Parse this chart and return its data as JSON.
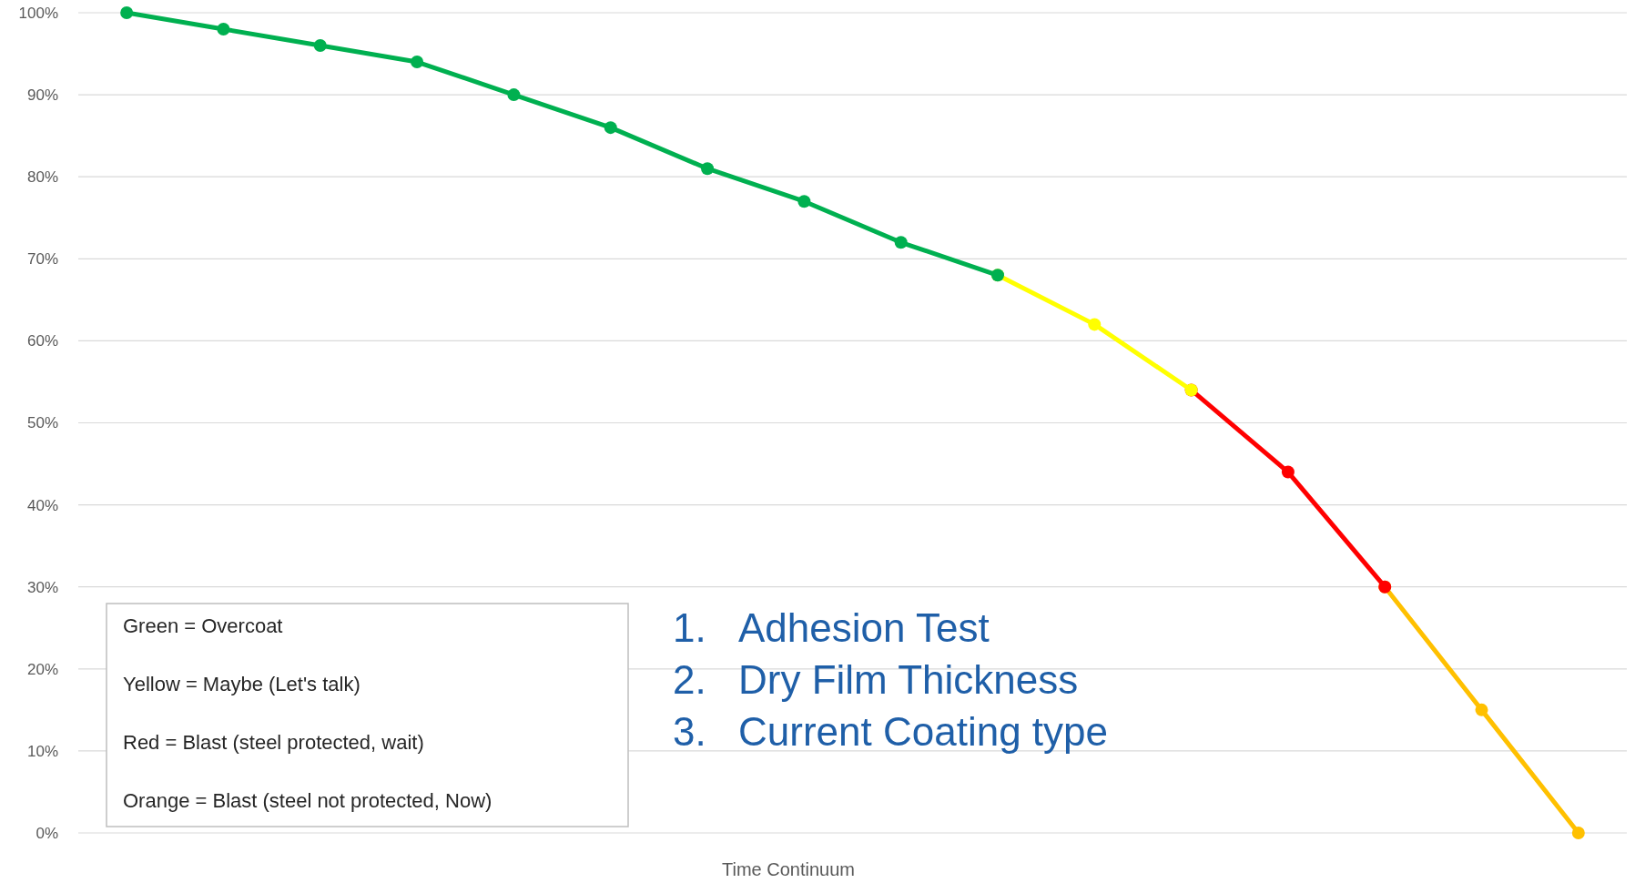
{
  "chart_data": {
    "type": "line",
    "xlabel": "Time Continuum",
    "categories": [
      null,
      null,
      null,
      null,
      null,
      null,
      null,
      null,
      null,
      null,
      null,
      null,
      null,
      null,
      null,
      null
    ],
    "series": [
      {
        "color": "#00b050",
        "values": [
          100,
          98,
          96,
          94,
          90,
          86,
          81,
          77,
          72,
          68,
          null,
          null,
          null,
          null,
          null,
          null
        ]
      },
      {
        "color": "#ffff00",
        "values": [
          null,
          null,
          null,
          null,
          null,
          null,
          null,
          null,
          null,
          68,
          62,
          54,
          null,
          null,
          null,
          null
        ]
      },
      {
        "color": "#ff0000",
        "values": [
          null,
          null,
          null,
          null,
          null,
          null,
          null,
          null,
          null,
          null,
          null,
          54,
          44,
          30,
          null,
          null
        ]
      },
      {
        "color": "#ffc000",
        "values": [
          null,
          null,
          null,
          null,
          null,
          null,
          null,
          null,
          null,
          null,
          null,
          null,
          null,
          30,
          15,
          0
        ]
      }
    ],
    "ylim": [
      0,
      100
    ],
    "yticks": [
      {
        "value": 0,
        "label": "0%"
      },
      {
        "value": 10,
        "label": "10%"
      },
      {
        "value": 20,
        "label": "20%"
      },
      {
        "value": 30,
        "label": "30%"
      },
      {
        "value": 40,
        "label": "40%"
      },
      {
        "value": 50,
        "label": "50%"
      },
      {
        "value": 60,
        "label": "60%"
      },
      {
        "value": 70,
        "label": "70%"
      },
      {
        "value": 80,
        "label": "80%"
      },
      {
        "value": 90,
        "label": "90%"
      },
      {
        "value": 100,
        "label": "100%"
      }
    ],
    "grid": "y",
    "marker": "circle",
    "line_style": "solid",
    "annotations": [
      "Green = Overcoat",
      "Yellow = Maybe (Let's talk)",
      "Red = Blast (steel protected, wait)",
      "Orange = Blast (steel not protected, Now)",
      "1. Adhesion Test",
      "2. Dry Film Thickness",
      "3. Current Coating type"
    ]
  }
}
